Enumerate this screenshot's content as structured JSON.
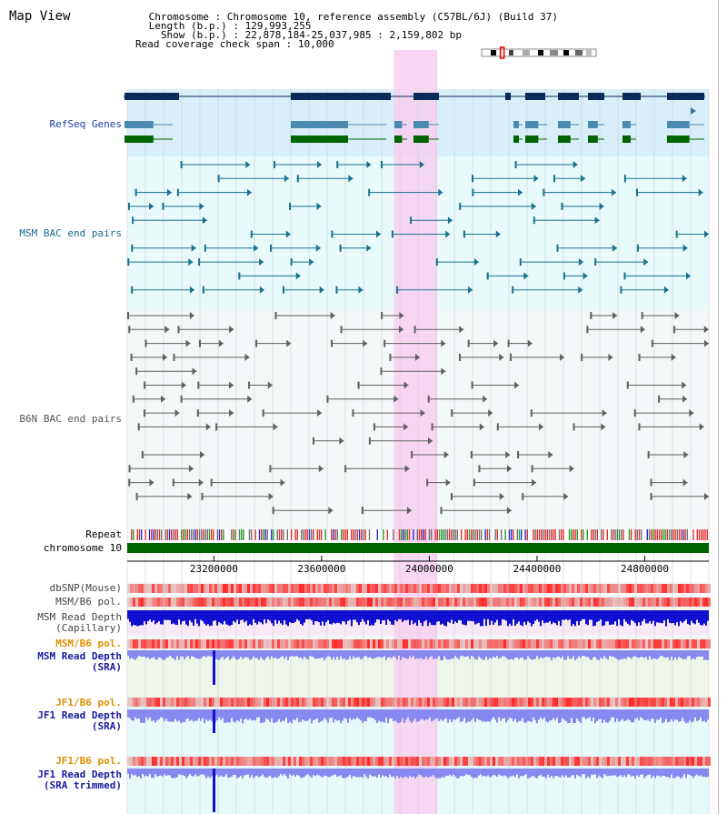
{
  "page": {
    "title": "Map View",
    "header": [
      {
        "key": " Chromosome",
        "sep": " : ",
        "value": "Chromosome 10, reference assembly (C57BL/6J) (Build 37)"
      },
      {
        "key": " Length (b.p.)",
        "sep": " : ",
        "value": "129,993,255"
      },
      {
        "key": "   Show (b.p.)",
        "sep": " : ",
        "value": "22,878,184-25,037,985 : 2,159,802 bp"
      },
      {
        "key": "Read coverage check span",
        "sep": " : ",
        "value": "10,000"
      }
    ]
  },
  "tracks": [
    {
      "id": "refseq",
      "label": "RefSeq Genes",
      "color": "#1a3da8",
      "bg": "#d8eef8"
    },
    {
      "id": "msm_bac",
      "label": "MSM BAC end pairs",
      "color": "#1a6a8a",
      "bg": "#e8fafa"
    },
    {
      "id": "b6n_bac",
      "label": "B6N BAC end pairs",
      "color": "#555555",
      "bg": "#f4f8f8"
    },
    {
      "id": "repeat",
      "label": "Repeat",
      "color": "#000000"
    },
    {
      "id": "chr",
      "label": "chromosome 10",
      "color": "#000000"
    },
    {
      "id": "dbsnp",
      "label": "dbSNP(Mouse)",
      "color": "#444444"
    },
    {
      "id": "msm_b6_pol",
      "label": "MSM/B6 pol.",
      "color": "#444444"
    },
    {
      "id": "msm_depth_cap",
      "label": "MSM Read Depth",
      "sub": "(Capillary)",
      "color": "#444444"
    },
    {
      "id": "msm_b6_pol_sra",
      "label": "MSM/B6 pol.",
      "color": "#e09000"
    },
    {
      "id": "msm_depth_sra",
      "label": "MSM Read Depth",
      "sub": "(SRA)",
      "color": "#1a1aa0"
    },
    {
      "id": "jf1_b6_pol",
      "label": "JF1/B6 pol.",
      "color": "#e09000"
    },
    {
      "id": "jf1_depth_sra",
      "label": "JF1 Read Depth",
      "sub": "(SRA)",
      "color": "#1a1aa0"
    },
    {
      "id": "jf1_b6_pol_2",
      "label": "JF1/B6 pol.",
      "color": "#e09000"
    },
    {
      "id": "jf1_depth_trim",
      "label": "JF1 Read Depth",
      "sub": "(SRA trimmed)",
      "color": "#1a1aa0"
    }
  ],
  "axis": {
    "start": 22878184,
    "end": 25037985,
    "ticks": [
      {
        "value": 23200000,
        "label": "23200000"
      },
      {
        "value": 23600000,
        "label": "23600000"
      },
      {
        "value": 24000000,
        "label": "24000000"
      },
      {
        "value": 24400000,
        "label": "24400000"
      },
      {
        "value": 24800000,
        "label": "24800000"
      }
    ],
    "highlight": {
      "from": 23868000,
      "to": 24030000
    }
  },
  "colors": {
    "refseq_dark": "#0a2a5a",
    "refseq_mid": "#4a8ab0",
    "refseq_green": "#006400",
    "highlight": "#f8d0f0",
    "chromosome": "#006400",
    "snp": "#e83030",
    "depth_dark": "#1010d0",
    "depth_light": "#8888f0"
  },
  "ideogram": {
    "name": "chromosome-ideogram",
    "marker_fraction": 0.18
  }
}
